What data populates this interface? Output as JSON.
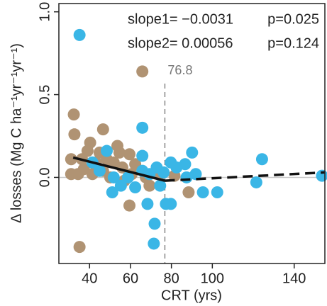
{
  "chart_data": {
    "type": "scatter",
    "xlabel": "CRT (yrs)",
    "ylabel": "Δ losses (Mg C ha⁻¹yr⁻¹yr⁻¹)",
    "xlim": [
      25,
      155
    ],
    "ylim": [
      -0.52,
      1.05
    ],
    "xticks": [
      40,
      60,
      80,
      100,
      140
    ],
    "yticks": [
      {
        "value": 0,
        "label": "0.0"
      },
      {
        "value": 0.5,
        "label": "0.5"
      },
      {
        "value": 1,
        "label": "1.0"
      }
    ],
    "zero_line_color": "#c8c8c8",
    "annotations": [
      "slope1= −0.0031",
      "p=0.025",
      "slope2= 0.00056",
      "p=0.124"
    ],
    "breakpoint": 76.8,
    "series": [
      {
        "color": "#b09373",
        "x": [
          65.8,
          32.3,
          32.6,
          35.1,
          46.6,
          40.3,
          39,
          31,
          44.9,
          48.4,
          51.8,
          54.6,
          56,
          53.6,
          59.5,
          62.3,
          34.4,
          37.2,
          41.4,
          46.6,
          50.1,
          57,
          60.6,
          67.5,
          69.3,
          59.5,
          74.5,
          88.4,
          81.5,
          31,
          43.1,
          36.3
        ],
        "values": [
          0.64,
          0.38,
          0.26,
          -0.42,
          0.29,
          0.21,
          0.16,
          0.11,
          0.15,
          0.11,
          0.09,
          0.15,
          0.06,
          0.19,
          0.14,
          0.08,
          0.02,
          0.05,
          0.02,
          0.04,
          0,
          -0.02,
          0.02,
          0,
          -0.05,
          -0.17,
          0.02,
          -0.09,
          0.01,
          0.02,
          0.09,
          0.11
        ]
      },
      {
        "color": "#3ab6e6",
        "x": [
          35.1,
          65.8,
          65.8,
          44.9,
          48.4,
          51.8,
          51.1,
          58.8,
          62.3,
          65.8,
          69.3,
          72.8,
          76.2,
          77.3,
          68.3,
          71.8,
          71.4,
          79.7,
          82.5,
          86.7,
          90.1,
          87.4,
          91.9,
          95.4,
          102.4,
          79.7,
          121.5,
          124.3,
          153.6,
          41.4,
          55.3,
          74.5
        ],
        "values": [
          0.86,
          0.3,
          0.13,
          0.04,
          0.16,
          0,
          -0.09,
          0,
          -0.06,
          0.04,
          0.02,
          0.06,
          0.03,
          -0.16,
          -0.16,
          -0.28,
          -0.4,
          0.09,
          0.06,
          0.08,
          0.15,
          0,
          0.02,
          -0.09,
          -0.09,
          -0.16,
          -0.03,
          0.11,
          0.01,
          0.09,
          -0.05,
          -0.05
        ]
      }
    ],
    "fit_lines": [
      {
        "x": [
          32,
          76.8
        ],
        "values": [
          0.12,
          -0.02
        ],
        "dashed": false
      },
      {
        "x": [
          76.8,
          155
        ],
        "values": [
          -0.02,
          0.03
        ],
        "dashed": true
      }
    ]
  }
}
